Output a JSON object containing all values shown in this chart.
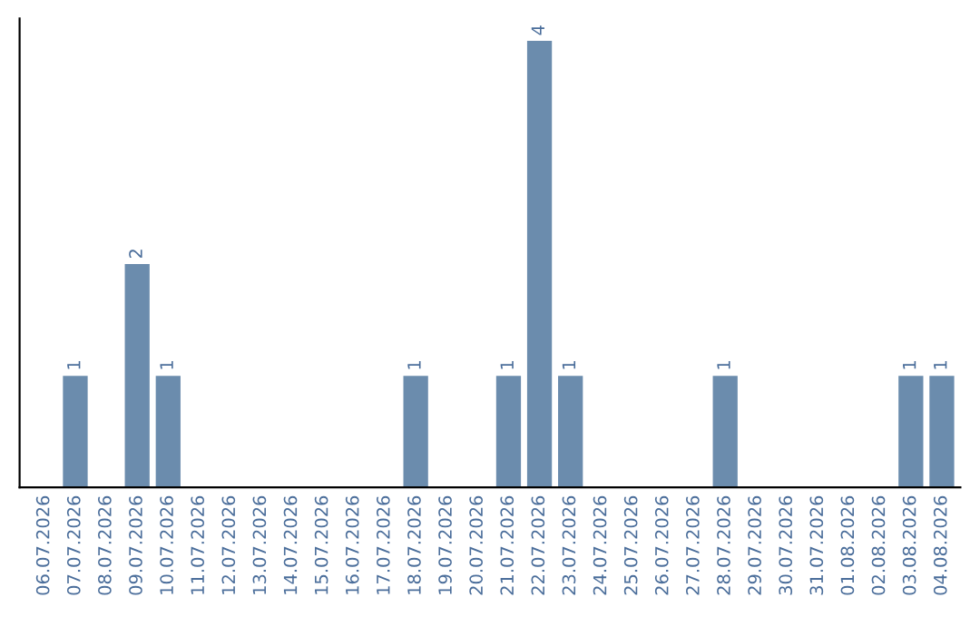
{
  "chart_data": {
    "type": "bar",
    "categories": [
      "06.07.2026",
      "07.07.2026",
      "08.07.2026",
      "09.07.2026",
      "10.07.2026",
      "11.07.2026",
      "12.07.2026",
      "13.07.2026",
      "14.07.2026",
      "15.07.2026",
      "16.07.2026",
      "17.07.2026",
      "18.07.2026",
      "19.07.2026",
      "20.07.2026",
      "21.07.2026",
      "22.07.2026",
      "23.07.2026",
      "24.07.2026",
      "25.07.2026",
      "26.07.2026",
      "27.07.2026",
      "28.07.2026",
      "29.07.2026",
      "30.07.2026",
      "31.07.2026",
      "01.08.2026",
      "02.08.2026",
      "03.08.2026",
      "04.08.2026"
    ],
    "values": [
      0,
      1,
      0,
      2,
      1,
      0,
      0,
      0,
      0,
      0,
      0,
      0,
      1,
      0,
      0,
      1,
      4,
      1,
      0,
      0,
      0,
      0,
      1,
      0,
      0,
      0,
      0,
      0,
      1,
      1
    ],
    "value_labels": [
      null,
      "1",
      null,
      "2",
      "1",
      null,
      null,
      null,
      null,
      null,
      null,
      null,
      "1",
      null,
      null,
      "1",
      "4",
      "1",
      null,
      null,
      null,
      null,
      "1",
      null,
      null,
      null,
      null,
      null,
      "1",
      "1"
    ],
    "color": "#6b8cad",
    "grid": false,
    "legend": false
  }
}
